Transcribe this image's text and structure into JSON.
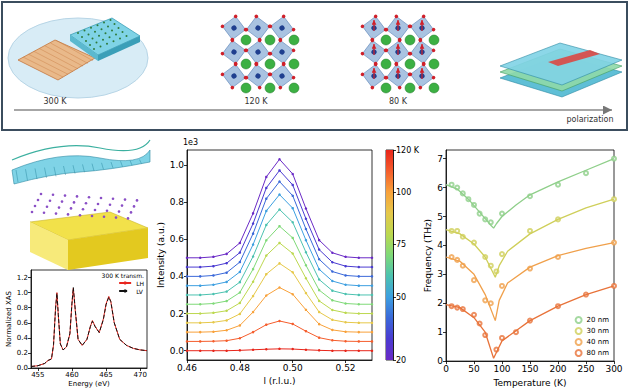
{
  "diagram": {
    "stages": [
      "300 K",
      "120 K",
      "80 K",
      "polarization"
    ]
  },
  "chart_data": [
    {
      "type": "line",
      "x_label": "Energy (eV)",
      "y_label": "Normalized XAS",
      "annotations": [
        "300 K transm."
      ],
      "x": [
        454,
        455,
        456,
        456.5,
        457,
        457.3,
        457.6,
        457.8,
        458.0,
        458.3,
        458.7,
        459.2,
        459.7,
        460.0,
        460.2,
        460.5,
        460.9,
        461.5,
        462.2,
        462.7,
        463.0,
        463.4,
        464.0,
        464.6,
        465.0,
        465.4,
        465.7,
        466.2,
        467,
        468,
        469,
        470,
        471
      ],
      "series": [
        {
          "name": "LH",
          "color": "#e8261f",
          "line_style": "solid",
          "values": [
            0.02,
            0.03,
            0.06,
            0.1,
            0.12,
            0.3,
            0.8,
            1.0,
            0.7,
            0.32,
            0.24,
            0.28,
            0.45,
            0.85,
            1.06,
            0.75,
            0.38,
            0.3,
            0.38,
            0.55,
            0.63,
            0.55,
            0.47,
            0.65,
            0.85,
            0.95,
            0.88,
            0.6,
            0.38,
            0.3,
            0.26,
            0.24,
            0.23
          ]
        },
        {
          "name": "LV",
          "color": "#111111",
          "line_style": "dashed",
          "values": [
            0.02,
            0.03,
            0.06,
            0.1,
            0.12,
            0.31,
            0.79,
            0.99,
            0.71,
            0.32,
            0.24,
            0.28,
            0.46,
            0.86,
            1.07,
            0.76,
            0.38,
            0.3,
            0.38,
            0.55,
            0.62,
            0.55,
            0.47,
            0.64,
            0.84,
            0.94,
            0.88,
            0.6,
            0.38,
            0.3,
            0.26,
            0.24,
            0.23
          ]
        }
      ],
      "xlim": [
        454,
        471
      ],
      "xticks": [
        455,
        460,
        465,
        470
      ],
      "ylim": [
        0,
        1.3
      ],
      "yticks": [
        {
          "value": 0,
          "label": "0.0"
        },
        0.2,
        0.4,
        0.6,
        0.8,
        {
          "value": 1,
          "label": "1.0"
        },
        1.2
      ],
      "legend": "upper right",
      "grid": false
    },
    {
      "type": "line",
      "x_label": "l (r.l.u.)",
      "y_label": "Intensity (a.u.)",
      "annotations": [
        "1e3"
      ],
      "marker": "circle",
      "x": [
        0.46,
        0.465,
        0.47,
        0.475,
        0.48,
        0.485,
        0.49,
        0.495,
        0.5,
        0.505,
        0.51,
        0.515,
        0.52,
        0.525,
        0.53
      ],
      "series": [
        {
          "color": "#e8251a",
          "values": [
            0,
            0,
            0,
            0,
            0.002,
            0.005,
            0.008,
            0.01,
            0.009,
            0.005,
            0.002,
            0,
            0,
            0,
            0
          ]
        },
        {
          "color": "#f55d2c",
          "values": [
            0.05,
            0.05,
            0.051,
            0.054,
            0.067,
            0.1,
            0.14,
            0.16,
            0.144,
            0.105,
            0.07,
            0.056,
            0.051,
            0.05,
            0.05
          ]
        },
        {
          "color": "#f8a13a",
          "values": [
            0.1,
            0.1,
            0.102,
            0.11,
            0.136,
            0.208,
            0.297,
            0.34,
            0.304,
            0.22,
            0.143,
            0.112,
            0.102,
            0.1,
            0.1
          ]
        },
        {
          "color": "#e6c84a",
          "values": [
            0.15,
            0.15,
            0.153,
            0.163,
            0.198,
            0.294,
            0.412,
            0.47,
            0.422,
            0.31,
            0.208,
            0.166,
            0.153,
            0.15,
            0.15
          ]
        },
        {
          "color": "#bcd84f",
          "values": [
            0.2,
            0.2,
            0.204,
            0.215,
            0.257,
            0.371,
            0.512,
            0.58,
            0.523,
            0.39,
            0.268,
            0.219,
            0.204,
            0.2,
            0.2
          ]
        },
        {
          "color": "#7fd978",
          "values": [
            0.25,
            0.25,
            0.254,
            0.267,
            0.313,
            0.439,
            0.594,
            0.67,
            0.607,
            0.46,
            0.326,
            0.271,
            0.254,
            0.25,
            0.25
          ]
        },
        {
          "color": "#4cc2b0",
          "values": [
            0.3,
            0.3,
            0.305,
            0.318,
            0.369,
            0.507,
            0.677,
            0.76,
            0.691,
            0.53,
            0.383,
            0.323,
            0.305,
            0.3,
            0.3
          ]
        },
        {
          "color": "#3d9fe0",
          "values": [
            0.35,
            0.35,
            0.355,
            0.37,
            0.424,
            0.571,
            0.752,
            0.84,
            0.767,
            0.595,
            0.438,
            0.375,
            0.355,
            0.35,
            0.35
          ]
        },
        {
          "color": "#3a68d9",
          "values": [
            0.4,
            0.4,
            0.405,
            0.42,
            0.477,
            0.63,
            0.818,
            0.91,
            0.834,
            0.655,
            0.492,
            0.426,
            0.405,
            0.4,
            0.4
          ]
        },
        {
          "color": "#4a3bd1",
          "values": [
            0.45,
            0.45,
            0.455,
            0.471,
            0.528,
            0.684,
            0.876,
            0.97,
            0.892,
            0.71,
            0.544,
            0.476,
            0.455,
            0.45,
            0.45
          ]
        },
        {
          "color": "#6a2ac6",
          "values": [
            0.5,
            0.5,
            0.505,
            0.521,
            0.58,
            0.739,
            0.935,
            1.03,
            0.951,
            0.765,
            0.595,
            0.527,
            0.505,
            0.5,
            0.5
          ]
        }
      ],
      "xlim": [
        0.46,
        0.53
      ],
      "xticks": [
        0.46,
        0.48,
        {
          "value": 0.5,
          "label": "0.50"
        },
        0.52
      ],
      "ylim": [
        -0.05,
        1.08
      ],
      "yticks": [
        {
          "value": 0,
          "label": "0.0"
        },
        0.2,
        0.4,
        0.6,
        0.8,
        {
          "value": 1,
          "label": "1.0"
        }
      ],
      "colorbar": {
        "range": [
          20,
          120
        ],
        "ticks": [
          20,
          50,
          75,
          100,
          {
            "value": 120,
            "label": "120 K"
          }
        ]
      },
      "grid": false
    },
    {
      "type": "scatter",
      "x_label": "Temperature (K)",
      "y_label": "Frequency (THz)",
      "marker": "circle",
      "series": [
        {
          "name": "20 nm",
          "color": "#8fcf8a",
          "x": [
            10,
            20,
            30,
            40,
            50,
            60,
            70,
            80,
            100,
            150,
            200,
            250,
            300
          ],
          "values": [
            6.1,
            6.0,
            5.8,
            5.6,
            5.4,
            5.1,
            4.9,
            4.8,
            5.1,
            5.7,
            6.1,
            6.5,
            7.0
          ],
          "fit": {
            "x": [
              0,
              20,
              40,
              60,
              80,
              85,
              90,
              100,
              125,
              150,
              200,
              250,
              300
            ],
            "values": [
              6.1,
              5.95,
              5.6,
              5.15,
              4.7,
              4.6,
              4.75,
              5.0,
              5.4,
              5.75,
              6.2,
              6.6,
              7.0
            ]
          }
        },
        {
          "name": "30 nm",
          "color": "#cfcf5a",
          "x": [
            10,
            20,
            30,
            50,
            70,
            80,
            90,
            100,
            150,
            200,
            300
          ],
          "values": [
            4.5,
            4.5,
            4.3,
            4.1,
            3.6,
            3.3,
            3.1,
            3.7,
            4.5,
            4.9,
            5.6
          ],
          "fit": {
            "x": [
              0,
              25,
              50,
              70,
              88,
              95,
              110,
              150,
              200,
              250,
              300
            ],
            "values": [
              4.55,
              4.4,
              4.05,
              3.6,
              2.9,
              3.3,
              3.8,
              4.4,
              4.9,
              5.3,
              5.6
            ]
          }
        },
        {
          "name": "40 nm",
          "color": "#f0a04b",
          "x": [
            10,
            20,
            30,
            50,
            70,
            80,
            100,
            150,
            200,
            300
          ],
          "values": [
            3.6,
            3.5,
            3.3,
            2.8,
            2.1,
            2.0,
            2.6,
            3.2,
            3.6,
            4.1
          ],
          "fit": {
            "x": [
              0,
              25,
              50,
              70,
              88,
              95,
              110,
              150,
              200,
              250,
              300
            ],
            "values": [
              3.6,
              3.45,
              3.0,
              2.3,
              1.4,
              2.1,
              2.7,
              3.25,
              3.65,
              3.9,
              4.1
            ]
          }
        },
        {
          "name": "80 nm",
          "color": "#e8733a",
          "x": [
            10,
            20,
            30,
            50,
            60,
            70,
            90,
            100,
            125,
            150,
            200,
            250,
            300
          ],
          "values": [
            1.9,
            1.85,
            1.8,
            1.6,
            1.3,
            0.9,
            0.4,
            0.8,
            1.0,
            1.4,
            1.9,
            2.3,
            2.6
          ],
          "fit": {
            "x": [
              0,
              25,
              50,
              70,
              85,
              90,
              100,
              125,
              150,
              200,
              250,
              300
            ],
            "values": [
              1.95,
              1.85,
              1.5,
              1.0,
              0.1,
              0.3,
              0.7,
              1.05,
              1.4,
              1.9,
              2.3,
              2.6
            ]
          }
        }
      ],
      "xlim": [
        0,
        300
      ],
      "xticks": [
        0,
        50,
        100,
        150,
        200,
        250,
        300
      ],
      "ylim": [
        0,
        7.3
      ],
      "yticks": [
        0,
        1,
        2,
        3,
        4,
        5,
        6,
        7
      ],
      "legend": "lower right",
      "grid": false
    }
  ]
}
